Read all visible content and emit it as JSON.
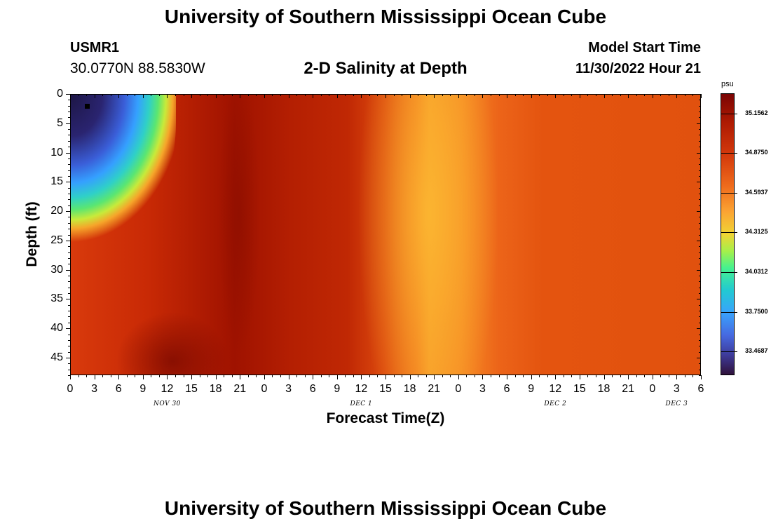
{
  "header": {
    "title": "University of Southern Mississippi Ocean Cube",
    "station": "USMR1",
    "coords": "30.0770N  88.5830W",
    "plot_title": "2-D Salinity at Depth",
    "model_start_label": "Model Start Time",
    "model_start_value": "11/30/2022 Hour 21"
  },
  "footer": {
    "title": "University of Southern Mississippi Ocean Cube"
  },
  "colors": {
    "max_salinity": "#7a0403",
    "high_salinity": "#e1510e",
    "mid_salinity": "#f79a28",
    "min_salinity": "#30123b",
    "marker": "#000000"
  },
  "chart_data": {
    "type": "heatmap",
    "title": "2-D Salinity at Depth",
    "xlabel": "Forecast Time(Z)",
    "ylabel": "Depth (ft)",
    "x_ticks": [
      "0",
      "3",
      "6",
      "9",
      "12",
      "15",
      "18",
      "21",
      "0",
      "3",
      "6",
      "9",
      "12",
      "15",
      "18",
      "21",
      "0",
      "3",
      "6",
      "9",
      "12",
      "15",
      "18",
      "21",
      "0",
      "3",
      "6"
    ],
    "date_labels": [
      {
        "text": "NOV 30",
        "at_hour": 12
      },
      {
        "text": "DEC 1",
        "at_hour": 36
      },
      {
        "text": "DEC 2",
        "at_hour": 60
      },
      {
        "text": "DEC 3",
        "at_hour": 75
      }
    ],
    "xlim": [
      0,
      78
    ],
    "y_ticks": [
      "0",
      "5",
      "10",
      "15",
      "20",
      "25",
      "30",
      "35",
      "40",
      "45"
    ],
    "ylim": [
      0,
      48
    ],
    "colorbar": {
      "unit": "psu",
      "labels": [
        "35.1562",
        "34.8750",
        "34.5937",
        "34.3125",
        "34.0312",
        "33.7500",
        "33.4687"
      ],
      "range": [
        33.3,
        35.3
      ]
    },
    "station_marker": {
      "hour": 2,
      "depth": 2
    },
    "regions": [
      {
        "description": "low salinity near surface",
        "hours": [
          0,
          6
        ],
        "depths": [
          0,
          15
        ],
        "salinity": 33.4
      },
      {
        "description": "mixing front",
        "hours": [
          6,
          12
        ],
        "depths": [
          0,
          28
        ],
        "salinity": 34.2
      },
      {
        "description": "high salinity bottom",
        "hours": [
          9,
          18
        ],
        "depths": [
          38,
          48
        ],
        "salinity": 35.2
      },
      {
        "description": "high salinity band",
        "hours": [
          18,
          24
        ],
        "depths": [
          0,
          48
        ],
        "salinity": 35.1
      },
      {
        "description": "lower salinity band",
        "hours": [
          45,
          51
        ],
        "depths": [
          0,
          30
        ],
        "salinity": 34.6
      },
      {
        "description": "steady mixed water",
        "hours": [
          57,
          78
        ],
        "depths": [
          0,
          48
        ],
        "salinity": 34.85
      }
    ]
  }
}
